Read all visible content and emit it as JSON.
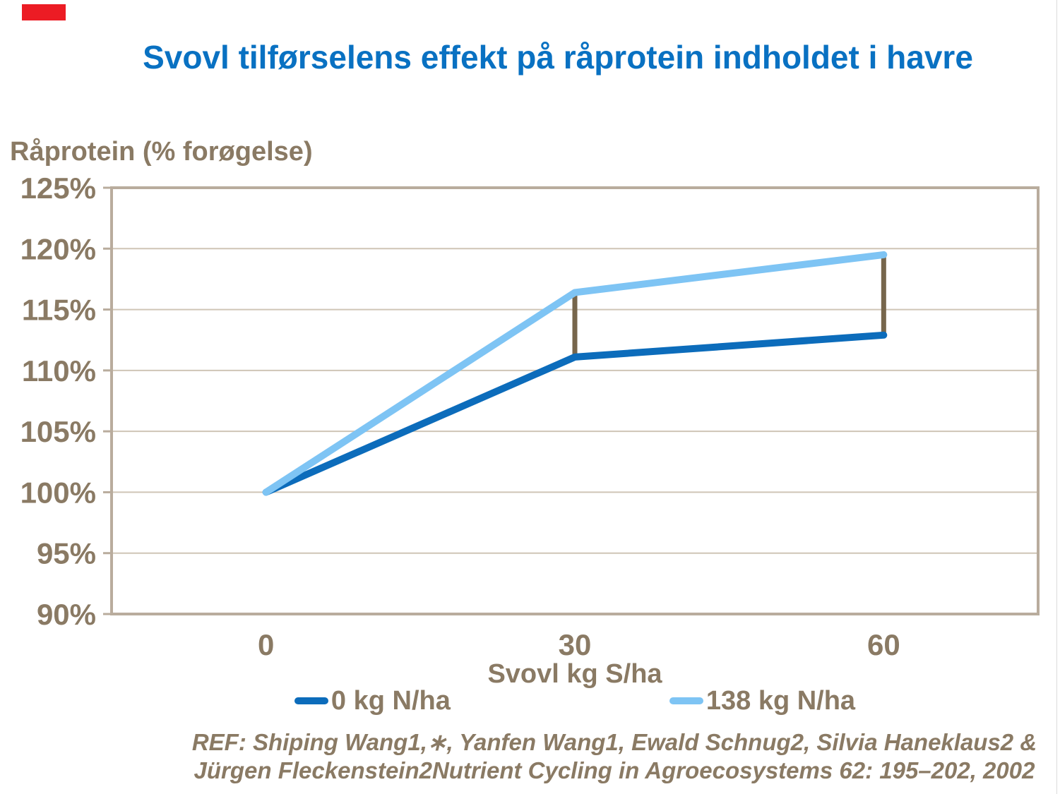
{
  "title": {
    "text": "Svovl tilførselens effekt på råprotein indholdet i havre"
  },
  "chart_data": {
    "type": "line",
    "title": "Svovl tilførselens effekt på råprotein indholdet i havre",
    "ylabel": "Råprotein (% forøgelse)",
    "xlabel": "Svovl kg S/ha",
    "categories": [
      "0",
      "30",
      "60"
    ],
    "x_values": [
      0,
      30,
      60
    ],
    "ylim": [
      90,
      125
    ],
    "ytick_step": 5,
    "ytick_labels": [
      "90%",
      "95%",
      "100%",
      "105%",
      "110%",
      "115%",
      "120%",
      "125%"
    ],
    "grid": true,
    "legend_position": "bottom",
    "series": [
      {
        "name": "0 kg N/ha",
        "color": "#0C6CBB",
        "values": [
          100,
          111.1,
          112.9
        ]
      },
      {
        "name": "138 kg N/ha",
        "color": "#7EC4F4",
        "values": [
          100,
          116.4,
          119.5
        ]
      }
    ],
    "difference_connectors": [
      {
        "x_index": 1,
        "from_value": 111.1,
        "to_value": 116.4
      },
      {
        "x_index": 2,
        "from_value": 112.9,
        "to_value": 119.5
      }
    ]
  },
  "reference": {
    "line1": "REF: Shiping Wang1,∗, Yanfen Wang1, Ewald Schnug2, Silvia Haneklaus2 &",
    "line2": "Jürgen Fleckenstein2Nutrient Cycling in Agroecosystems 62: 195–202, 2002"
  },
  "colors": {
    "title": "#0971C2",
    "text": "#8A7A64",
    "gridline": "#CFC5B6",
    "frame": "#B9AC9D",
    "connector": "#77664C",
    "red_box": "#EC1C24"
  }
}
